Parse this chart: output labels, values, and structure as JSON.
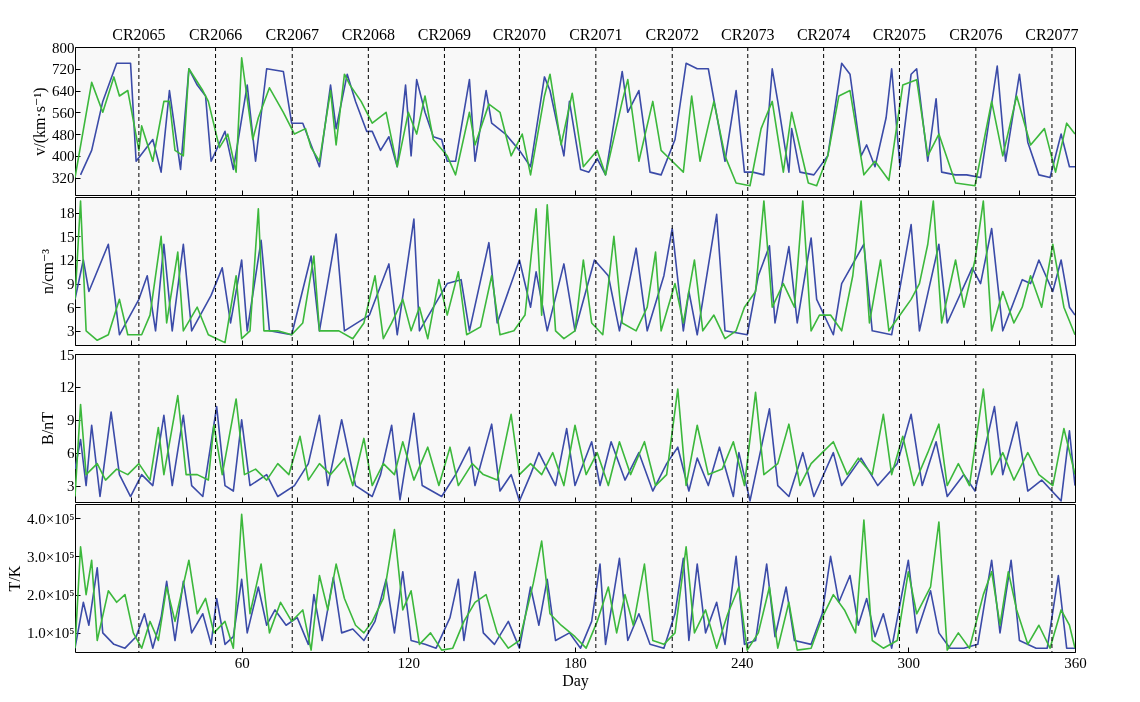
{
  "chart_data": [
    {
      "type": "line",
      "ylabel": "v/(km·s⁻¹)",
      "xlim": [
        0,
        360
      ],
      "ylim": [
        256,
        800
      ],
      "yticks": [
        320,
        400,
        480,
        560,
        640,
        720,
        800
      ],
      "tick_labels": "y",
      "series": [
        {
          "color": "#3b4ba8",
          "x": [
            2,
            6,
            10,
            15,
            20,
            22,
            28,
            31,
            34,
            38,
            41,
            44,
            47,
            49,
            54,
            57,
            62,
            65,
            69,
            75,
            78,
            82,
            85,
            88,
            92,
            94,
            98,
            101,
            105,
            107,
            110,
            113,
            116,
            119,
            121,
            123,
            126,
            129,
            132,
            134,
            137,
            142,
            144,
            148,
            150,
            155,
            160,
            164,
            169,
            171,
            176,
            178,
            182,
            185,
            188,
            191,
            197,
            199,
            203,
            207,
            211,
            216,
            220,
            224,
            228,
            231,
            234,
            238,
            241,
            244,
            248,
            251,
            253,
            257,
            258,
            261,
            266,
            271,
            276,
            279,
            283,
            285,
            288,
            292,
            294,
            297,
            301,
            303,
            307,
            310,
            312,
            317,
            321,
            326,
            332,
            335,
            340,
            343,
            347,
            351,
            355,
            358,
            360
          ],
          "values": [
            330,
            420,
            600,
            740,
            740,
            380,
            460,
            340,
            640,
            350,
            720,
            660,
            620,
            380,
            490,
            350,
            660,
            380,
            720,
            710,
            520,
            520,
            440,
            360,
            660,
            500,
            700,
            600,
            490,
            490,
            420,
            470,
            360,
            660,
            400,
            680,
            560,
            470,
            460,
            380,
            380,
            680,
            380,
            640,
            520,
            480,
            420,
            360,
            690,
            640,
            400,
            600,
            350,
            340,
            390,
            330,
            710,
            560,
            640,
            340,
            330,
            460,
            740,
            720,
            720,
            550,
            380,
            640,
            340,
            340,
            330,
            720,
            600,
            340,
            500,
            340,
            330,
            400,
            740,
            700,
            400,
            440,
            360,
            540,
            720,
            360,
            700,
            720,
            380,
            610,
            340,
            330,
            330,
            320,
            730,
            380,
            700,
            450,
            330,
            320,
            480,
            360,
            360
          ]
        },
        {
          "color": "#3cb83c",
          "x": [
            0,
            6,
            10,
            14,
            16,
            19,
            23,
            24,
            28,
            32,
            34,
            36,
            39,
            41,
            46,
            48,
            52,
            55,
            58,
            60,
            64,
            66,
            70,
            75,
            79,
            83,
            85,
            88,
            92,
            94,
            97,
            99,
            103,
            107,
            112,
            116,
            120,
            123,
            126,
            129,
            134,
            137,
            142,
            144,
            149,
            153,
            157,
            161,
            164,
            169,
            171,
            175,
            179,
            183,
            188,
            191,
            197,
            199,
            203,
            208,
            211,
            215,
            219,
            222,
            225,
            230,
            234,
            238,
            243,
            247,
            251,
            255,
            258,
            264,
            267,
            271,
            275,
            279,
            284,
            288,
            293,
            298,
            303,
            307,
            311,
            317,
            324,
            330,
            334,
            339,
            344,
            349,
            353,
            357,
            360
          ],
          "values": [
            320,
            670,
            560,
            690,
            620,
            640,
            420,
            510,
            380,
            600,
            600,
            420,
            400,
            720,
            640,
            600,
            430,
            480,
            340,
            760,
            460,
            540,
            650,
            560,
            480,
            500,
            430,
            380,
            640,
            440,
            700,
            660,
            600,
            520,
            560,
            360,
            560,
            480,
            620,
            460,
            400,
            330,
            560,
            440,
            590,
            560,
            400,
            480,
            330,
            620,
            700,
            440,
            630,
            360,
            420,
            330,
            600,
            680,
            380,
            600,
            420,
            380,
            340,
            620,
            380,
            600,
            400,
            300,
            290,
            500,
            600,
            340,
            560,
            300,
            290,
            400,
            620,
            640,
            330,
            380,
            310,
            660,
            680,
            400,
            480,
            300,
            290,
            600,
            400,
            620,
            440,
            500,
            340,
            520,
            480
          ]
        }
      ],
      "ref_lines": [
        {
          "axis": "x",
          "value": 23,
          "label": "CR2065",
          "line_style": "dashed"
        },
        {
          "axis": "x",
          "value": 50.6,
          "label": "CR2066",
          "line_style": "dashed"
        },
        {
          "axis": "x",
          "value": 78.2,
          "label": "CR2067",
          "line_style": "dashed"
        },
        {
          "axis": "x",
          "value": 105.6,
          "label": "CR2068",
          "line_style": "dashed"
        },
        {
          "axis": "x",
          "value": 133,
          "label": "CR2069",
          "line_style": "dashed"
        },
        {
          "axis": "x",
          "value": 160,
          "label": "CR2070",
          "line_style": "dashed"
        },
        {
          "axis": "x",
          "value": 187.5,
          "label": "CR2071",
          "line_style": "dashed"
        },
        {
          "axis": "x",
          "value": 215,
          "label": "CR2072",
          "line_style": "dashed"
        },
        {
          "axis": "x",
          "value": 242.2,
          "label": "CR2073",
          "line_style": "dashed"
        },
        {
          "axis": "x",
          "value": 269.5,
          "label": "CR2074",
          "line_style": "dashed"
        },
        {
          "axis": "x",
          "value": 296.8,
          "label": "CR2075",
          "line_style": "dashed"
        },
        {
          "axis": "x",
          "value": 324.3,
          "label": "CR2076",
          "line_style": "dashed"
        },
        {
          "axis": "x",
          "value": 351.7,
          "label": "CR2077",
          "line_style": "dashed"
        }
      ]
    },
    {
      "type": "line",
      "ylabel": "n/cm⁻³",
      "xlim": [
        0,
        360
      ],
      "ylim": [
        1.2,
        20
      ],
      "yticks": [
        3,
        6,
        9,
        12,
        15,
        18
      ],
      "tick_labels": "y",
      "series": [
        {
          "color": "#3b4ba8",
          "x": [
            0,
            3,
            5,
            12,
            16,
            23,
            26,
            29,
            32,
            35,
            39,
            42,
            49,
            53,
            56,
            60,
            62,
            67,
            70,
            78,
            85,
            88,
            94,
            97,
            106,
            113,
            116,
            122,
            124,
            134,
            139,
            142,
            149,
            152,
            160,
            164,
            166,
            170,
            176,
            180,
            187,
            192,
            196,
            202,
            206,
            212,
            215,
            219,
            221,
            224,
            231,
            234,
            242,
            246,
            250,
            252,
            257,
            260,
            265,
            267,
            273,
            276,
            284,
            287,
            294,
            301,
            304,
            311,
            314,
            323,
            326,
            330,
            334,
            341,
            344,
            347,
            352,
            355,
            358,
            360
          ],
          "values": [
            7,
            12,
            8,
            14,
            2.5,
            7,
            10,
            3,
            14,
            3,
            14,
            3,
            7.5,
            11,
            4,
            12,
            3,
            14.5,
            3,
            2.5,
            12.5,
            3,
            15.3,
            3,
            5,
            11.5,
            2.5,
            17.2,
            3,
            9,
            9.5,
            3,
            14.2,
            4,
            12,
            6,
            10.5,
            3,
            11.5,
            3,
            12,
            10,
            3,
            13.5,
            3,
            10,
            16,
            3,
            8,
            2.5,
            17.8,
            3,
            2.5,
            10,
            13.8,
            4,
            13.7,
            4,
            14.8,
            7,
            2.5,
            9,
            14,
            3,
            2.5,
            16.5,
            3,
            14,
            4,
            11,
            9,
            16,
            3,
            9.5,
            9,
            12,
            8,
            12,
            6,
            5
          ]
        },
        {
          "color": "#3cb83c",
          "x": [
            0,
            2,
            4,
            8,
            12,
            16,
            19,
            24,
            27,
            31,
            33,
            37,
            39,
            44,
            48,
            51,
            54,
            58,
            60,
            63,
            66,
            68,
            73,
            78,
            82,
            86,
            88,
            95,
            100,
            104,
            108,
            111,
            114,
            118,
            121,
            124,
            127,
            131,
            134,
            138,
            141,
            146,
            150,
            153,
            158,
            162,
            166,
            168,
            170,
            173,
            176,
            180,
            183,
            186,
            190,
            194,
            197,
            202,
            206,
            209,
            211,
            216,
            219,
            223,
            226,
            230,
            234,
            238,
            241,
            245,
            248,
            251,
            255,
            259,
            262,
            265,
            268,
            272,
            276,
            280,
            283,
            286,
            290,
            293,
            297,
            301,
            304,
            307,
            309,
            312,
            317,
            320,
            324,
            327,
            330,
            334,
            338,
            341,
            344,
            348,
            352,
            356,
            360
          ],
          "values": [
            7,
            19.5,
            3,
            1.8,
            2.5,
            7,
            2.5,
            2.5,
            5,
            15,
            4,
            13,
            3,
            6,
            2.5,
            2,
            1.5,
            10,
            2,
            3,
            18.5,
            3,
            3,
            2.5,
            4,
            12.5,
            3,
            3,
            2,
            4,
            10,
            2,
            4,
            7,
            3,
            6,
            2,
            9.5,
            5,
            10.5,
            2.5,
            3.5,
            10,
            2.5,
            3,
            5,
            18.5,
            5,
            19,
            3,
            2,
            3,
            12,
            4,
            2.5,
            15,
            4,
            3,
            6,
            13,
            3,
            9,
            4,
            12,
            3,
            5,
            2,
            3,
            6,
            8,
            19.5,
            6,
            9,
            6,
            19.5,
            3,
            5,
            5,
            3,
            10,
            19.5,
            4,
            12,
            3,
            5,
            7,
            9,
            14,
            19.5,
            4,
            12,
            6,
            12,
            19.5,
            3,
            8,
            4,
            6,
            10,
            6,
            14,
            6,
            2.5
          ]
        }
      ],
      "ref_lines": [
        {
          "axis": "x",
          "value": 23,
          "line_style": "dashed"
        },
        {
          "axis": "x",
          "value": 50.6,
          "line_style": "dashed"
        },
        {
          "axis": "x",
          "value": 78.2,
          "line_style": "dashed"
        },
        {
          "axis": "x",
          "value": 105.6,
          "line_style": "dashed"
        },
        {
          "axis": "x",
          "value": 133,
          "line_style": "dashed"
        },
        {
          "axis": "x",
          "value": 160,
          "line_style": "dashed"
        },
        {
          "axis": "x",
          "value": 187.5,
          "line_style": "dashed"
        },
        {
          "axis": "x",
          "value": 215,
          "line_style": "dashed"
        },
        {
          "axis": "x",
          "value": 242.2,
          "line_style": "dashed"
        },
        {
          "axis": "x",
          "value": 269.5,
          "line_style": "dashed"
        },
        {
          "axis": "x",
          "value": 296.8,
          "line_style": "dashed"
        },
        {
          "axis": "x",
          "value": 324.3,
          "line_style": "dashed"
        },
        {
          "axis": "x",
          "value": 351.7,
          "line_style": "dashed"
        }
      ]
    },
    {
      "type": "line",
      "ylabel": "B/nT",
      "xlim": [
        0,
        360
      ],
      "ylim": [
        1.5,
        15
      ],
      "yticks": [
        3,
        6,
        9,
        12,
        15
      ],
      "tick_labels": "y",
      "series": [
        {
          "color": "#3b4ba8",
          "x": [
            0,
            2,
            4,
            6,
            9,
            13,
            16,
            20,
            24,
            28,
            32,
            35,
            39,
            42,
            46,
            51,
            54,
            57,
            60,
            63,
            69,
            73,
            79,
            84,
            88,
            91,
            96,
            101,
            107,
            110,
            114,
            117,
            122,
            125,
            132,
            137,
            142,
            144,
            150,
            153,
            157,
            160,
            164,
            167,
            173,
            177,
            180,
            186,
            189,
            193,
            198,
            203,
            208,
            213,
            217,
            221,
            224,
            228,
            232,
            237,
            239,
            243,
            250,
            253,
            257,
            262,
            266,
            273,
            276,
            283,
            289,
            296,
            301,
            305,
            310,
            314,
            320,
            324,
            331,
            334,
            339,
            343,
            348,
            355,
            358,
            360
          ],
          "values": [
            4.5,
            7.2,
            3,
            8.5,
            2,
            9.7,
            4,
            2,
            4,
            3,
            9.4,
            3,
            9.4,
            3,
            2,
            10.2,
            3,
            2.5,
            9,
            3,
            4,
            2,
            3,
            5,
            9.4,
            3,
            9,
            3,
            2,
            4,
            8.5,
            1.7,
            9.6,
            3,
            2,
            4,
            6.5,
            3,
            8.6,
            2.5,
            4,
            1.6,
            4,
            6,
            3,
            8.2,
            3,
            7,
            3,
            7,
            3.5,
            6,
            2.5,
            5,
            6.5,
            2.5,
            5.5,
            3,
            6.5,
            2,
            6,
            1.6,
            10,
            3,
            2,
            6,
            2,
            6,
            3,
            5.5,
            3,
            5,
            9.5,
            3,
            7,
            2,
            4,
            2.5,
            10.2,
            4,
            8.8,
            2.5,
            3.5,
            1.6,
            8,
            3
          ]
        },
        {
          "color": "#3cb83c",
          "x": [
            0,
            2,
            4,
            8,
            11,
            15,
            19,
            23,
            27,
            30,
            32,
            37,
            40,
            44,
            48,
            50,
            53,
            58,
            61,
            65,
            69,
            73,
            77,
            81,
            84,
            88,
            92,
            97,
            100,
            104,
            107,
            111,
            115,
            118,
            122,
            127,
            131,
            135,
            138,
            143,
            147,
            152,
            157,
            160,
            164,
            168,
            172,
            176,
            180,
            184,
            188,
            192,
            196,
            200,
            205,
            209,
            213,
            217,
            220,
            224,
            228,
            233,
            237,
            241,
            245,
            248,
            253,
            257,
            261,
            265,
            269,
            273,
            278,
            282,
            287,
            291,
            294,
            298,
            302,
            307,
            311,
            314,
            318,
            322,
            327,
            330,
            334,
            338,
            343,
            347,
            352,
            356,
            360
          ],
          "values": [
            2,
            10.4,
            4,
            5,
            3.5,
            4.5,
            4,
            5,
            3.5,
            8.3,
            4,
            11.2,
            4,
            4,
            3.5,
            8.5,
            4,
            10.9,
            4,
            4.5,
            3.5,
            5,
            4,
            7.5,
            3.5,
            5,
            4,
            5.5,
            3,
            7.3,
            3,
            5,
            4,
            7,
            3.5,
            6.5,
            3,
            6.5,
            3,
            5,
            4,
            3.5,
            9.5,
            4,
            5,
            4,
            6,
            3,
            8.5,
            4,
            6,
            3,
            7,
            4,
            7,
            3,
            4,
            11.8,
            3,
            8.5,
            4,
            4.5,
            7,
            3,
            11.5,
            4,
            5,
            8.6,
            3,
            5,
            6,
            7,
            4,
            5.5,
            4,
            9.5,
            4,
            7.5,
            3,
            6,
            8.6,
            3,
            5,
            3,
            11.8,
            4,
            6,
            3.5,
            6,
            4,
            3,
            8.2,
            4
          ]
        }
      ],
      "ref_lines": [
        {
          "axis": "x",
          "value": 23,
          "line_style": "dashed"
        },
        {
          "axis": "x",
          "value": 50.6,
          "line_style": "dashed"
        },
        {
          "axis": "x",
          "value": 78.2,
          "line_style": "dashed"
        },
        {
          "axis": "x",
          "value": 105.6,
          "line_style": "dashed"
        },
        {
          "axis": "x",
          "value": 133,
          "line_style": "dashed"
        },
        {
          "axis": "x",
          "value": 160,
          "line_style": "dashed"
        },
        {
          "axis": "x",
          "value": 187.5,
          "line_style": "dashed"
        },
        {
          "axis": "x",
          "value": 215,
          "line_style": "dashed"
        },
        {
          "axis": "x",
          "value": 242.2,
          "line_style": "dashed"
        },
        {
          "axis": "x",
          "value": 269.5,
          "line_style": "dashed"
        },
        {
          "axis": "x",
          "value": 296.8,
          "line_style": "dashed"
        },
        {
          "axis": "x",
          "value": 324.3,
          "line_style": "dashed"
        },
        {
          "axis": "x",
          "value": 351.7,
          "line_style": "dashed"
        }
      ]
    },
    {
      "type": "line",
      "xlabel": "Day",
      "ylabel": "T/K",
      "xlim": [
        0,
        360
      ],
      "xticks": [
        60,
        120,
        180,
        240,
        300,
        360
      ],
      "ylim": [
        50000,
        437000
      ],
      "yticks": [
        {
          "value": 100000,
          "label": "1.0×10⁵"
        },
        {
          "value": 200000,
          "label": "2.0×10⁵"
        },
        {
          "value": 300000,
          "label": "3.0×10⁵"
        },
        {
          "value": 400000,
          "label": "4.0×10⁵"
        }
      ],
      "series": [
        {
          "color": "#3b4ba8",
          "x": [
            0,
            3,
            5,
            8,
            10,
            14,
            18,
            22,
            25,
            28,
            31,
            33,
            36,
            39,
            42,
            46,
            49,
            51,
            54,
            57,
            60,
            62,
            66,
            69,
            72,
            76,
            80,
            84,
            86,
            89,
            93,
            96,
            100,
            104,
            108,
            112,
            115,
            118,
            121,
            126,
            130,
            135,
            138,
            140,
            144,
            147,
            151,
            156,
            160,
            164,
            167,
            170,
            173,
            178,
            182,
            186,
            189,
            191,
            196,
            199,
            203,
            207,
            212,
            216,
            219,
            221,
            224,
            227,
            231,
            234,
            238,
            241,
            245,
            249,
            252,
            256,
            259,
            265,
            269,
            272,
            275,
            279,
            282,
            285,
            288,
            291,
            294,
            300,
            303,
            308,
            311,
            315,
            320,
            325,
            330,
            333,
            337,
            340,
            346,
            350,
            354,
            357,
            360
          ],
          "values": [
            60000,
            180000,
            120000,
            270000,
            100000,
            70000,
            60000,
            90000,
            150000,
            60000,
            140000,
            235000,
            80000,
            235000,
            100000,
            150000,
            70000,
            190000,
            70000,
            90000,
            240000,
            100000,
            220000,
            120000,
            160000,
            120000,
            140000,
            70000,
            200000,
            80000,
            245000,
            100000,
            110000,
            80000,
            130000,
            240000,
            100000,
            260000,
            80000,
            70000,
            60000,
            140000,
            240000,
            80000,
            260000,
            100000,
            70000,
            130000,
            60000,
            220000,
            120000,
            240000,
            80000,
            100000,
            60000,
            130000,
            280000,
            70000,
            295000,
            80000,
            150000,
            70000,
            60000,
            150000,
            295000,
            80000,
            280000,
            100000,
            180000,
            70000,
            300000,
            70000,
            80000,
            280000,
            90000,
            220000,
            80000,
            70000,
            150000,
            300000,
            180000,
            250000,
            120000,
            190000,
            90000,
            150000,
            60000,
            290000,
            100000,
            210000,
            100000,
            60000,
            60000,
            70000,
            290000,
            100000,
            290000,
            80000,
            60000,
            60000,
            250000,
            60000,
            60000
          ]
        },
        {
          "color": "#3cb83c",
          "x": [
            0,
            2,
            4,
            6,
            8,
            12,
            15,
            18,
            21,
            24,
            27,
            30,
            33,
            36,
            41,
            44,
            47,
            50,
            54,
            57,
            60,
            63,
            67,
            70,
            74,
            78,
            82,
            85,
            88,
            91,
            94,
            97,
            101,
            104,
            107,
            111,
            115,
            118,
            121,
            124,
            128,
            132,
            136,
            140,
            144,
            148,
            152,
            156,
            160,
            165,
            168,
            171,
            175,
            180,
            184,
            188,
            192,
            195,
            198,
            201,
            205,
            208,
            212,
            216,
            220,
            223,
            227,
            231,
            235,
            239,
            242,
            246,
            250,
            253,
            257,
            260,
            265,
            269,
            273,
            277,
            281,
            284,
            287,
            291,
            296,
            300,
            303,
            308,
            311,
            314,
            318,
            322,
            327,
            330,
            333,
            336,
            339,
            343,
            347,
            351,
            355,
            358,
            360
          ],
          "values": [
            60000,
            325000,
            200000,
            290000,
            80000,
            210000,
            180000,
            200000,
            100000,
            60000,
            130000,
            80000,
            220000,
            130000,
            290000,
            150000,
            190000,
            100000,
            130000,
            60000,
            410000,
            150000,
            280000,
            100000,
            180000,
            130000,
            160000,
            55000,
            250000,
            160000,
            280000,
            190000,
            120000,
            100000,
            130000,
            190000,
            370000,
            160000,
            210000,
            70000,
            100000,
            55000,
            60000,
            130000,
            180000,
            200000,
            100000,
            60000,
            80000,
            230000,
            340000,
            150000,
            120000,
            90000,
            60000,
            130000,
            220000,
            100000,
            200000,
            120000,
            280000,
            80000,
            70000,
            100000,
            325000,
            100000,
            160000,
            60000,
            150000,
            220000,
            55000,
            100000,
            220000,
            60000,
            180000,
            55000,
            60000,
            140000,
            200000,
            160000,
            100000,
            395000,
            80000,
            60000,
            80000,
            260000,
            150000,
            220000,
            390000,
            55000,
            100000,
            60000,
            200000,
            260000,
            120000,
            260000,
            160000,
            70000,
            120000,
            60000,
            160000,
            120000,
            60000
          ]
        }
      ],
      "ref_lines": [
        {
          "axis": "x",
          "value": 23,
          "line_style": "dashed"
        },
        {
          "axis": "x",
          "value": 50.6,
          "line_style": "dashed"
        },
        {
          "axis": "x",
          "value": 78.2,
          "line_style": "dashed"
        },
        {
          "axis": "x",
          "value": 105.6,
          "line_style": "dashed"
        },
        {
          "axis": "x",
          "value": 133,
          "line_style": "dashed"
        },
        {
          "axis": "x",
          "value": 160,
          "line_style": "dashed"
        },
        {
          "axis": "x",
          "value": 187.5,
          "line_style": "dashed"
        },
        {
          "axis": "x",
          "value": 215,
          "line_style": "dashed"
        },
        {
          "axis": "x",
          "value": 242.2,
          "line_style": "dashed"
        },
        {
          "axis": "x",
          "value": 269.5,
          "line_style": "dashed"
        },
        {
          "axis": "x",
          "value": 296.8,
          "line_style": "dashed"
        },
        {
          "axis": "x",
          "value": 324.3,
          "line_style": "dashed"
        },
        {
          "axis": "x",
          "value": 351.7,
          "line_style": "dashed"
        }
      ]
    }
  ]
}
